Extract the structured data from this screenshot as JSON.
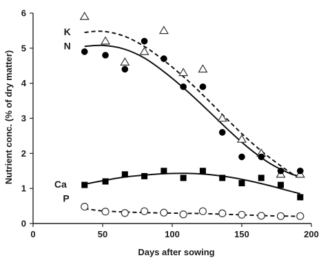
{
  "chart_data": {
    "type": "scatter",
    "xlabel": "Days after sowing",
    "ylabel": "Nutrient conc. (% of dry matter)",
    "xlim": [
      0,
      200
    ],
    "ylim": [
      0,
      6
    ],
    "xticks": [
      0,
      50,
      100,
      150,
      200
    ],
    "yticks": [
      0,
      1,
      2,
      3,
      4,
      5,
      6
    ],
    "grid": false,
    "series": [
      {
        "name": "K",
        "marker": "open-triangle",
        "fit_line": "dashed",
        "x": [
          37,
          52,
          66,
          80,
          94,
          108,
          122,
          136,
          150,
          164,
          178,
          192
        ],
        "y": [
          5.9,
          5.2,
          4.6,
          4.9,
          5.5,
          4.3,
          4.4,
          3.0,
          2.4,
          2.0,
          1.4,
          1.4
        ],
        "fit_x": [
          37,
          50,
          65,
          80,
          95,
          110,
          125,
          140,
          155,
          170,
          185,
          192
        ],
        "fit_y": [
          5.45,
          5.48,
          5.35,
          5.05,
          4.62,
          4.12,
          3.55,
          2.95,
          2.38,
          1.88,
          1.45,
          1.3
        ]
      },
      {
        "name": "N",
        "marker": "filled-circle",
        "fit_line": "solid",
        "x": [
          37,
          52,
          66,
          80,
          94,
          108,
          122,
          136,
          150,
          164,
          178,
          192
        ],
        "y": [
          4.9,
          4.8,
          4.4,
          5.2,
          4.7,
          3.9,
          3.9,
          2.6,
          1.9,
          1.9,
          1.5,
          1.5
        ],
        "fit_x": [
          37,
          50,
          65,
          80,
          95,
          110,
          125,
          140,
          155,
          170,
          185,
          192
        ],
        "fit_y": [
          5.05,
          5.08,
          4.98,
          4.72,
          4.3,
          3.8,
          3.25,
          2.68,
          2.15,
          1.72,
          1.42,
          1.35
        ]
      },
      {
        "name": "Ca",
        "marker": "filled-square",
        "fit_line": "solid",
        "x": [
          37,
          52,
          66,
          80,
          94,
          108,
          122,
          136,
          150,
          164,
          178,
          192
        ],
        "y": [
          1.1,
          1.2,
          1.4,
          1.35,
          1.5,
          1.3,
          1.5,
          1.3,
          1.15,
          1.3,
          1.1,
          0.75
        ],
        "fit_x": [
          37,
          50,
          65,
          80,
          95,
          110,
          125,
          140,
          155,
          170,
          185,
          192
        ],
        "fit_y": [
          1.12,
          1.22,
          1.32,
          1.38,
          1.42,
          1.43,
          1.4,
          1.33,
          1.22,
          1.08,
          0.92,
          0.85
        ]
      },
      {
        "name": "P",
        "marker": "open-circle",
        "fit_line": "dashed",
        "x": [
          37,
          52,
          66,
          80,
          94,
          108,
          122,
          136,
          150,
          164,
          178,
          192
        ],
        "y": [
          0.48,
          0.34,
          0.3,
          0.35,
          0.31,
          0.26,
          0.35,
          0.29,
          0.25,
          0.22,
          0.21,
          0.21
        ],
        "fit_x": [
          37,
          50,
          65,
          80,
          95,
          110,
          125,
          140,
          155,
          170,
          185,
          192
        ],
        "fit_y": [
          0.42,
          0.36,
          0.33,
          0.31,
          0.3,
          0.29,
          0.28,
          0.26,
          0.24,
          0.22,
          0.21,
          0.2
        ]
      }
    ]
  }
}
